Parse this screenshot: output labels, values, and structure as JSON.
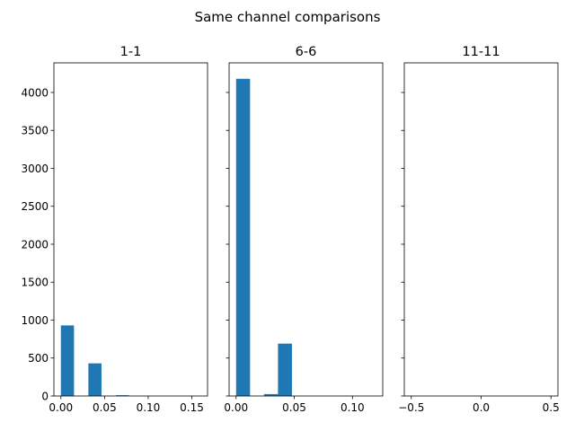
{
  "suptitle": "Same channel comparisons",
  "colors": {
    "bar": "#1f77b4",
    "axis": "#000000",
    "background": "#ffffff"
  },
  "chart_data": [
    {
      "type": "bar",
      "title": "1-1",
      "xlim": [
        -0.008,
        0.168
      ],
      "ylim": [
        0,
        4390
      ],
      "xticks": [
        0.0,
        0.05,
        0.1,
        0.15
      ],
      "xtick_labels": [
        "0.00",
        "0.05",
        "0.10",
        "0.15"
      ],
      "yticks": [
        0,
        500,
        1000,
        1500,
        2000,
        2500,
        3000,
        3500,
        4000
      ],
      "ytick_labels": [
        "0",
        "500",
        "1000",
        "1500",
        "2000",
        "2500",
        "3000",
        "3500",
        "4000"
      ],
      "bars": [
        {
          "x0": 0.0,
          "x1": 0.015,
          "value": 930
        },
        {
          "x0": 0.015,
          "x1": 0.03,
          "value": 0
        },
        {
          "x0": 0.0315,
          "x1": 0.0465,
          "value": 430
        },
        {
          "x0": 0.0465,
          "x1": 0.0615,
          "value": 0
        },
        {
          "x0": 0.063,
          "x1": 0.078,
          "value": 10
        },
        {
          "x0": 0.078,
          "x1": 0.093,
          "value": 0
        },
        {
          "x0": 0.0945,
          "x1": 0.1095,
          "value": 0
        },
        {
          "x0": 0.1095,
          "x1": 0.1245,
          "value": 0
        },
        {
          "x0": 0.126,
          "x1": 0.141,
          "value": 0
        },
        {
          "x0": 0.141,
          "x1": 0.156,
          "value": 0
        }
      ],
      "show_yticklabels": true
    },
    {
      "type": "bar",
      "title": "6-6",
      "xlim": [
        -0.006,
        0.126
      ],
      "ylim": [
        0,
        4390
      ],
      "xticks": [
        0.0,
        0.05,
        0.1
      ],
      "xtick_labels": [
        "0.00",
        "0.05",
        "0.10"
      ],
      "yticks": [
        0,
        500,
        1000,
        1500,
        2000,
        2500,
        3000,
        3500,
        4000
      ],
      "ytick_labels": [],
      "bars": [
        {
          "x0": 0.0,
          "x1": 0.012,
          "value": 4180
        },
        {
          "x0": 0.012,
          "x1": 0.024,
          "value": 0
        },
        {
          "x0": 0.024,
          "x1": 0.036,
          "value": 25
        },
        {
          "x0": 0.036,
          "x1": 0.048,
          "value": 690
        },
        {
          "x0": 0.048,
          "x1": 0.06,
          "value": 0
        },
        {
          "x0": 0.06,
          "x1": 0.072,
          "value": 0
        },
        {
          "x0": 0.072,
          "x1": 0.084,
          "value": 0
        },
        {
          "x0": 0.084,
          "x1": 0.096,
          "value": 0
        },
        {
          "x0": 0.096,
          "x1": 0.108,
          "value": 0
        },
        {
          "x0": 0.108,
          "x1": 0.12,
          "value": 0
        }
      ],
      "show_yticklabels": false
    },
    {
      "type": "bar",
      "title": "11-11",
      "xlim": [
        -0.55,
        0.55
      ],
      "ylim": [
        0,
        4390
      ],
      "xticks": [
        -0.5,
        0.0,
        0.5
      ],
      "xtick_labels": [
        "−0.5",
        "0.0",
        "0.5"
      ],
      "yticks": [
        0,
        500,
        1000,
        1500,
        2000,
        2500,
        3000,
        3500,
        4000
      ],
      "ytick_labels": [],
      "bars": [],
      "show_yticklabels": false
    }
  ]
}
